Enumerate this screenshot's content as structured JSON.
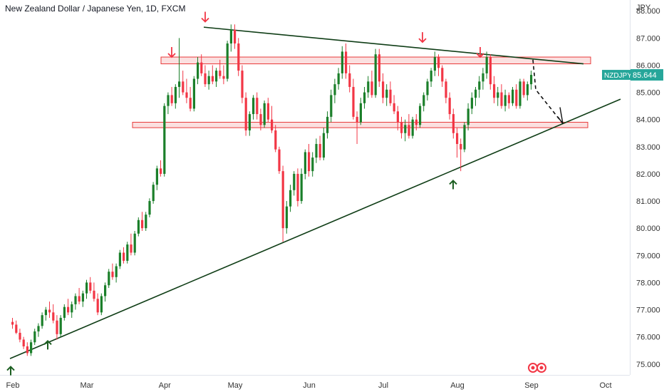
{
  "header": {
    "title": "New Zealand Dollar / Japanese Yen, 1D, FXCM",
    "currency": "JPY"
  },
  "price_tag": {
    "symbol": "NZDJPY",
    "value": "85.644",
    "color": "#26a69a"
  },
  "colors": {
    "up": "#1b7f2a",
    "down": "#f23645",
    "zone_fill": "#f7c6c6",
    "zone_stroke": "#e83a3a",
    "trendline": "#0f3d16",
    "arrow_up": "#1b5e20",
    "arrow_down": "#f23645"
  },
  "logo_icon": "tradingview-eyes-icon",
  "chart_data": {
    "type": "candlestick",
    "title": "New Zealand Dollar / Japanese Yen, 1D, FXCM",
    "y_axis_label": "JPY",
    "ylim": [
      74.6,
      88.4
    ],
    "y_ticks": [
      "75.000",
      "76.000",
      "77.000",
      "78.000",
      "79.000",
      "80.000",
      "81.000",
      "82.000",
      "83.000",
      "84.000",
      "85.000",
      "86.000",
      "87.000",
      "88.000"
    ],
    "x_ticks": [
      "Feb",
      "Mar",
      "Apr",
      "May",
      "Jun",
      "Jul",
      "Aug",
      "Sep",
      "Oct"
    ],
    "series": [
      {
        "points": [
          [
            76.55,
            76.7,
            76.3,
            76.45
          ],
          [
            76.45,
            76.6,
            76.1,
            76.15
          ],
          [
            76.15,
            76.3,
            75.8,
            75.9
          ],
          [
            75.9,
            76.0,
            75.55,
            75.65
          ],
          [
            75.65,
            75.8,
            75.3,
            75.4
          ],
          [
            75.4,
            75.9,
            75.3,
            75.8
          ],
          [
            75.8,
            76.3,
            75.7,
            76.2
          ],
          [
            76.2,
            76.5,
            76.0,
            76.4
          ],
          [
            76.4,
            76.9,
            76.3,
            76.8
          ],
          [
            76.8,
            77.1,
            76.6,
            77.0
          ],
          [
            77.0,
            77.3,
            76.7,
            76.9
          ],
          [
            76.9,
            77.2,
            76.5,
            76.6
          ],
          [
            76.6,
            76.8,
            75.9,
            76.1
          ],
          [
            76.1,
            76.8,
            76.0,
            76.7
          ],
          [
            76.7,
            77.2,
            76.6,
            77.1
          ],
          [
            77.1,
            77.4,
            76.8,
            76.9
          ],
          [
            76.9,
            77.3,
            76.7,
            77.2
          ],
          [
            77.2,
            77.6,
            77.0,
            77.5
          ],
          [
            77.5,
            77.8,
            77.2,
            77.3
          ],
          [
            77.3,
            77.7,
            77.1,
            77.6
          ],
          [
            77.6,
            78.1,
            77.4,
            78.0
          ],
          [
            78.0,
            78.2,
            77.6,
            77.7
          ],
          [
            77.7,
            78.0,
            77.3,
            77.4
          ],
          [
            77.4,
            77.6,
            76.8,
            76.9
          ],
          [
            76.9,
            77.6,
            76.8,
            77.5
          ],
          [
            77.5,
            78.0,
            77.3,
            77.9
          ],
          [
            77.9,
            78.5,
            77.8,
            78.4
          ],
          [
            78.4,
            78.7,
            78.1,
            78.2
          ],
          [
            78.2,
            78.7,
            78.0,
            78.6
          ],
          [
            78.6,
            79.2,
            78.5,
            79.1
          ],
          [
            79.1,
            79.3,
            78.7,
            78.8
          ],
          [
            78.8,
            79.5,
            78.7,
            79.4
          ],
          [
            79.4,
            79.8,
            79.0,
            79.1
          ],
          [
            79.1,
            79.9,
            79.0,
            79.8
          ],
          [
            79.8,
            80.4,
            79.7,
            80.3
          ],
          [
            80.3,
            80.6,
            79.9,
            80.0
          ],
          [
            80.0,
            80.6,
            79.9,
            80.5
          ],
          [
            80.5,
            81.1,
            80.4,
            81.0
          ],
          [
            81.0,
            81.7,
            80.9,
            81.6
          ],
          [
            81.6,
            82.3,
            81.4,
            82.2
          ],
          [
            82.2,
            82.5,
            81.9,
            82.0
          ],
          [
            82.0,
            84.6,
            81.9,
            84.5
          ],
          [
            84.5,
            85.0,
            84.2,
            84.9
          ],
          [
            84.9,
            85.2,
            84.5,
            84.6
          ],
          [
            84.6,
            85.3,
            84.4,
            85.2
          ],
          [
            85.2,
            87.0,
            84.8,
            85.4
          ],
          [
            85.4,
            85.8,
            84.9,
            85.0
          ],
          [
            85.0,
            85.5,
            84.6,
            84.8
          ],
          [
            84.8,
            85.2,
            84.3,
            84.4
          ],
          [
            84.4,
            85.6,
            84.3,
            85.5
          ],
          [
            85.5,
            86.3,
            85.3,
            86.1
          ],
          [
            86.1,
            86.4,
            85.6,
            85.7
          ],
          [
            85.7,
            86.0,
            85.2,
            85.3
          ],
          [
            85.3,
            85.8,
            85.1,
            85.6
          ],
          [
            85.6,
            86.0,
            85.3,
            85.4
          ],
          [
            85.4,
            85.9,
            85.2,
            85.8
          ],
          [
            85.8,
            86.2,
            85.5,
            85.6
          ],
          [
            85.6,
            86.0,
            85.3,
            85.5
          ],
          [
            85.5,
            86.9,
            85.4,
            86.8
          ],
          [
            86.8,
            87.5,
            86.5,
            87.3
          ],
          [
            87.3,
            87.5,
            86.6,
            86.8
          ],
          [
            86.8,
            87.0,
            85.6,
            85.8
          ],
          [
            85.8,
            86.0,
            84.6,
            84.8
          ],
          [
            84.8,
            85.0,
            83.4,
            83.6
          ],
          [
            83.6,
            84.3,
            83.4,
            84.2
          ],
          [
            84.2,
            84.9,
            84.0,
            84.8
          ],
          [
            84.8,
            85.0,
            84.0,
            84.2
          ],
          [
            84.2,
            84.4,
            83.6,
            83.8
          ],
          [
            83.8,
            84.7,
            83.7,
            84.6
          ],
          [
            84.6,
            84.8,
            83.9,
            84.0
          ],
          [
            84.0,
            84.5,
            83.5,
            83.6
          ],
          [
            83.6,
            83.8,
            82.8,
            82.9
          ],
          [
            82.9,
            83.0,
            82.0,
            82.1
          ],
          [
            82.1,
            82.3,
            79.5,
            80.0
          ],
          [
            80.0,
            81.0,
            79.8,
            80.8
          ],
          [
            80.8,
            81.6,
            80.6,
            81.4
          ],
          [
            81.4,
            82.1,
            81.2,
            82.0
          ],
          [
            82.0,
            82.2,
            80.8,
            81.0
          ],
          [
            81.0,
            82.2,
            80.9,
            82.0
          ],
          [
            82.0,
            82.9,
            81.8,
            82.8
          ],
          [
            82.8,
            83.1,
            81.9,
            82.1
          ],
          [
            82.1,
            82.8,
            81.9,
            82.6
          ],
          [
            82.6,
            83.3,
            82.4,
            83.1
          ],
          [
            83.1,
            83.4,
            82.5,
            82.6
          ],
          [
            82.6,
            83.7,
            82.5,
            83.5
          ],
          [
            83.5,
            84.3,
            83.3,
            84.1
          ],
          [
            84.1,
            85.1,
            83.9,
            84.9
          ],
          [
            84.9,
            85.5,
            84.6,
            85.3
          ],
          [
            85.3,
            85.9,
            85.1,
            85.7
          ],
          [
            85.7,
            86.7,
            85.5,
            86.5
          ],
          [
            86.5,
            86.8,
            85.5,
            85.7
          ],
          [
            85.7,
            86.0,
            85.0,
            85.2
          ],
          [
            85.2,
            85.5,
            84.0,
            84.1
          ],
          [
            84.1,
            84.3,
            83.1,
            83.9
          ],
          [
            83.9,
            84.8,
            83.8,
            84.6
          ],
          [
            84.6,
            85.2,
            84.4,
            85.0
          ],
          [
            85.0,
            85.6,
            84.8,
            85.4
          ],
          [
            85.4,
            85.8,
            84.8,
            84.9
          ],
          [
            84.9,
            86.6,
            84.8,
            86.4
          ],
          [
            86.4,
            86.6,
            85.2,
            85.4
          ],
          [
            85.4,
            85.7,
            84.6,
            84.8
          ],
          [
            84.8,
            85.3,
            84.5,
            85.1
          ],
          [
            85.1,
            85.4,
            84.5,
            84.6
          ],
          [
            84.6,
            84.9,
            84.2,
            84.3
          ],
          [
            84.3,
            84.5,
            83.6,
            83.9
          ],
          [
            83.9,
            84.1,
            83.3,
            83.5
          ],
          [
            83.5,
            84.0,
            83.2,
            83.8
          ],
          [
            83.8,
            84.2,
            83.3,
            83.4
          ],
          [
            83.4,
            84.1,
            83.3,
            84.0
          ],
          [
            84.0,
            84.2,
            83.6,
            83.8
          ],
          [
            83.8,
            84.6,
            83.7,
            84.5
          ],
          [
            84.5,
            85.0,
            84.3,
            84.9
          ],
          [
            84.9,
            85.5,
            84.7,
            85.4
          ],
          [
            85.4,
            85.9,
            85.2,
            85.8
          ],
          [
            85.8,
            86.5,
            85.6,
            86.3
          ],
          [
            86.3,
            86.4,
            85.6,
            85.9
          ],
          [
            85.9,
            86.0,
            85.2,
            85.4
          ],
          [
            85.4,
            85.5,
            84.6,
            84.8
          ],
          [
            84.8,
            85.0,
            84.0,
            84.2
          ],
          [
            84.2,
            84.4,
            83.3,
            83.5
          ],
          [
            83.5,
            83.7,
            82.6,
            83.1
          ],
          [
            83.1,
            83.3,
            82.1,
            82.9
          ],
          [
            82.9,
            83.9,
            82.8,
            83.8
          ],
          [
            83.8,
            84.6,
            83.6,
            84.4
          ],
          [
            84.4,
            85.0,
            84.2,
            84.8
          ],
          [
            84.8,
            85.2,
            84.5,
            85.1
          ],
          [
            85.1,
            85.6,
            84.8,
            85.4
          ],
          [
            85.4,
            85.9,
            85.1,
            85.7
          ],
          [
            85.7,
            86.5,
            85.5,
            86.3
          ],
          [
            86.3,
            86.4,
            85.1,
            85.3
          ],
          [
            85.3,
            85.6,
            84.6,
            84.8
          ],
          [
            84.8,
            85.2,
            84.5,
            85.0
          ],
          [
            85.0,
            85.3,
            84.4,
            84.5
          ],
          [
            84.5,
            85.1,
            84.3,
            84.9
          ],
          [
            84.9,
            85.0,
            84.4,
            84.6
          ],
          [
            84.6,
            85.2,
            84.5,
            85.1
          ],
          [
            85.1,
            85.3,
            84.4,
            84.5
          ],
          [
            84.5,
            85.5,
            84.4,
            85.4
          ],
          [
            85.4,
            85.5,
            84.8,
            84.9
          ],
          [
            84.9,
            85.4,
            84.7,
            85.3
          ],
          [
            85.3,
            85.8,
            85.1,
            85.644
          ]
        ]
      }
    ],
    "annotations": {
      "resistance_zone": [
        86.05,
        86.3
      ],
      "support_zone": [
        83.7,
        83.9
      ],
      "upper_trendline": [
        [
          0,
          87.4
        ],
        [
          155,
          86.05
        ]
      ],
      "lower_trendline": [
        [
          -4,
          75.2
        ],
        [
          165,
          84.75
        ]
      ],
      "projection": [
        [
          135,
          86.2
        ],
        [
          142,
          83.8
        ]
      ],
      "down_arrows": [
        [
          12,
          86.3
        ],
        [
          59,
          87.6
        ],
        [
          100,
          86.85
        ],
        [
          123,
          86.3
        ]
      ],
      "up_arrows": [
        [
          -6,
          75.1
        ],
        [
          6,
          75.8
        ],
        [
          106,
          82.1
        ]
      ]
    }
  }
}
